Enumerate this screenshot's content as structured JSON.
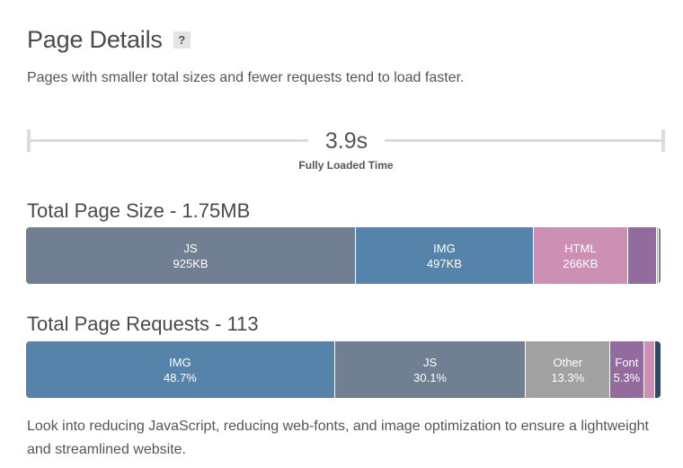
{
  "header": {
    "title": "Page Details",
    "help_label": "?"
  },
  "subtitle": "Pages with smaller total sizes and fewer requests tend to load faster.",
  "timeline": {
    "value": "3.9s",
    "label": "Fully Loaded Time"
  },
  "page_size": {
    "title": "Total Page Size - 1.75MB",
    "segments": [
      {
        "label": "JS",
        "value": "925KB",
        "share": 52.0,
        "color": "#717f92"
      },
      {
        "label": "IMG",
        "value": "497KB",
        "share": 28.0,
        "color": "#5583a9"
      },
      {
        "label": "HTML",
        "value": "266KB",
        "share": 14.9,
        "color": "#cd8fb3"
      },
      {
        "label": "",
        "value": "",
        "share": 4.5,
        "color": "#936b9e"
      },
      {
        "label": "",
        "value": "",
        "share": 0.3,
        "color": "#b6b6b6"
      },
      {
        "label": "",
        "value": "",
        "share": 0.3,
        "color": "#717f92"
      }
    ]
  },
  "page_requests": {
    "title": "Total Page Requests - 113",
    "segments": [
      {
        "label": "IMG",
        "value": "48.7%",
        "share": 48.7,
        "color": "#5583a9"
      },
      {
        "label": "JS",
        "value": "30.1%",
        "share": 30.1,
        "color": "#717f92"
      },
      {
        "label": "Other",
        "value": "13.3%",
        "share": 13.3,
        "color": "#a1a1a1"
      },
      {
        "label": "Font",
        "value": "5.3%",
        "share": 5.3,
        "color": "#936b9e"
      },
      {
        "label": "",
        "value": "",
        "share": 1.8,
        "color": "#cd8fb3"
      },
      {
        "label": "",
        "value": "",
        "share": 0.8,
        "color": "#2e4a66"
      }
    ]
  },
  "note": "Look into reducing JavaScript, reducing web-fonts, and image optimization to ensure a lightweight and streamlined website."
}
